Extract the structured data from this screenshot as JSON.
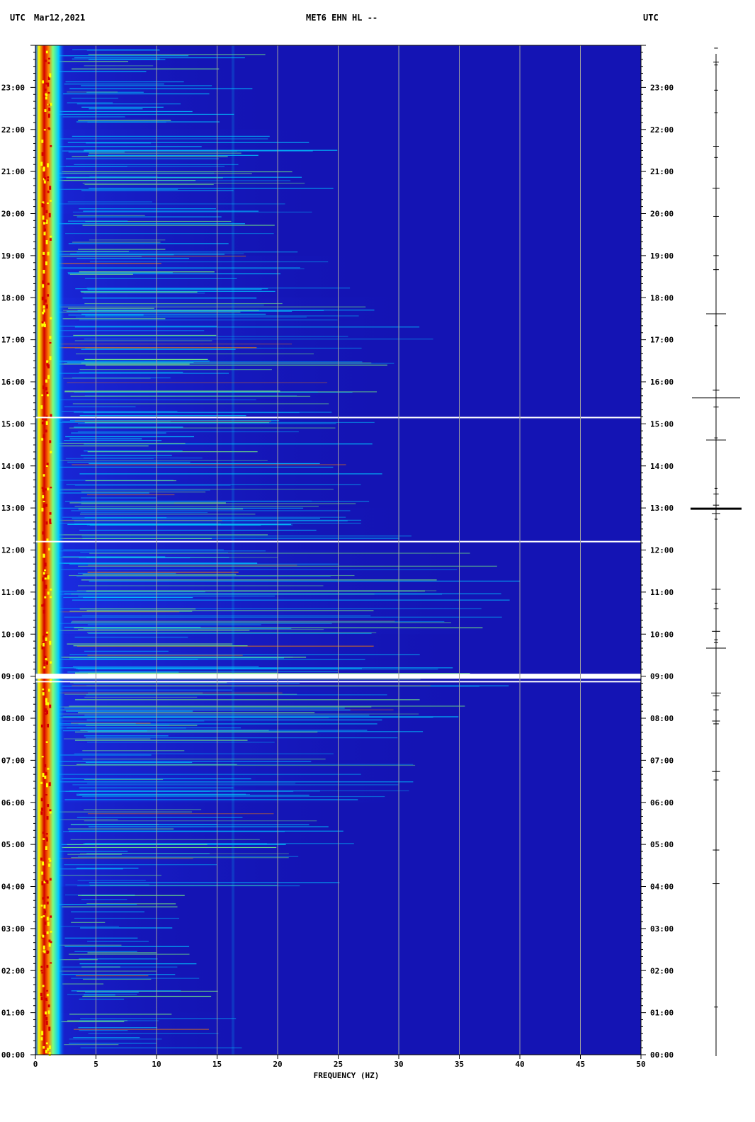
{
  "header": {
    "left_tz": "UTC",
    "date": "Mar12,2021",
    "station": "MET6 EHN HL --",
    "right_tz": "UTC"
  },
  "chart_data": {
    "type": "heatmap",
    "title": "MET6 EHN HL --",
    "xlabel": "FREQUENCY (HZ)",
    "ylabel": "",
    "xlim": [
      0,
      50
    ],
    "ylim_hours": [
      0,
      24
    ],
    "x_ticks": [
      0,
      5,
      10,
      15,
      20,
      25,
      30,
      35,
      40,
      45,
      50
    ],
    "y_tick_labels": [
      "00:00",
      "01:00",
      "02:00",
      "03:00",
      "04:00",
      "05:00",
      "06:00",
      "07:00",
      "08:00",
      "09:00",
      "10:00",
      "11:00",
      "12:00",
      "13:00",
      "14:00",
      "15:00",
      "16:00",
      "17:00",
      "18:00",
      "19:00",
      "20:00",
      "21:00",
      "22:00",
      "23:00"
    ],
    "colormap": [
      "#00007a",
      "#0000c8",
      "#0050ff",
      "#00c8ff",
      "#7cff7c",
      "#ffff00",
      "#ff8000",
      "#d40000"
    ],
    "background_color": "#1414b4",
    "dominant_band_hz": [
      0.4,
      1.2
    ],
    "data_gaps_utc": [
      "09:00",
      "12:12",
      "15:09"
    ],
    "strong_events_utc": [
      "12:59",
      "15:37",
      "17:37",
      "14:37",
      "09:40"
    ],
    "noise_level_by_hour": [
      0.35,
      0.3,
      0.25,
      0.25,
      0.5,
      0.55,
      0.7,
      0.75,
      0.85,
      0.8,
      0.9,
      0.85,
      0.7,
      0.6,
      0.6,
      0.65,
      0.65,
      0.7,
      0.6,
      0.45,
      0.5,
      0.5,
      0.4,
      0.35
    ]
  }
}
